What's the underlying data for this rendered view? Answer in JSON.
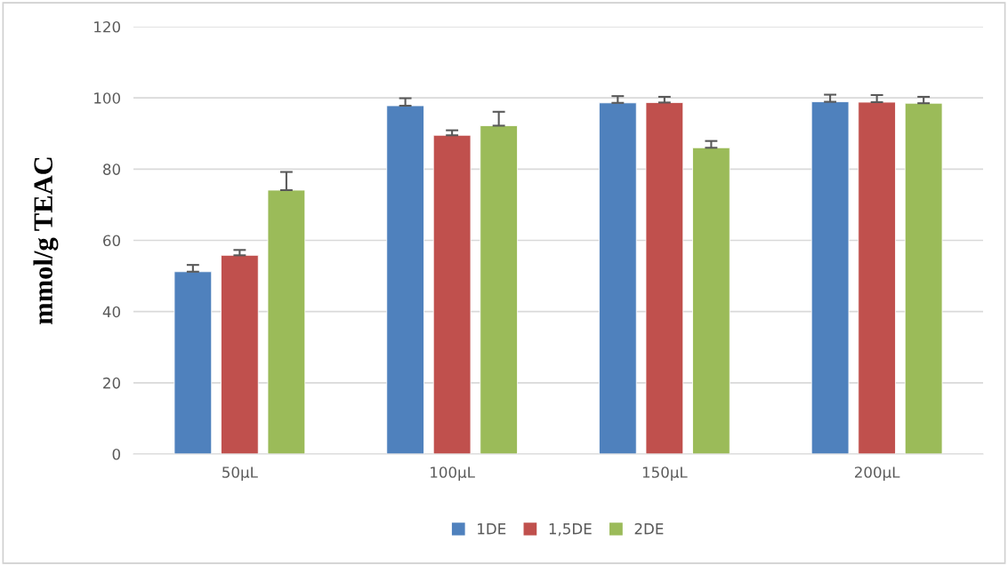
{
  "chart_data": {
    "type": "bar",
    "ylabel": "mmol/g TEAC",
    "categories": [
      "50µL",
      "100µL",
      "150µL",
      "200µL"
    ],
    "series": [
      {
        "name": "1DE",
        "color": "#4f81bd",
        "values": [
          51.2,
          97.8,
          98.6,
          98.9
        ],
        "errors": [
          1.9,
          2.1,
          1.9,
          2.0
        ]
      },
      {
        "name": "1,5DE",
        "color": "#c0504d",
        "values": [
          55.8,
          89.5,
          98.7,
          98.8
        ],
        "errors": [
          1.5,
          1.4,
          1.6,
          2.0
        ]
      },
      {
        "name": "2DE",
        "color": "#9bbb59",
        "values": [
          74.1,
          92.2,
          86.0,
          98.5
        ],
        "errors": [
          5.1,
          3.9,
          1.9,
          1.8
        ]
      }
    ],
    "ylim": [
      0,
      120
    ],
    "yticks": [
      0,
      20,
      40,
      60,
      80,
      100,
      120
    ],
    "grid": "y",
    "legend": "bottom"
  }
}
